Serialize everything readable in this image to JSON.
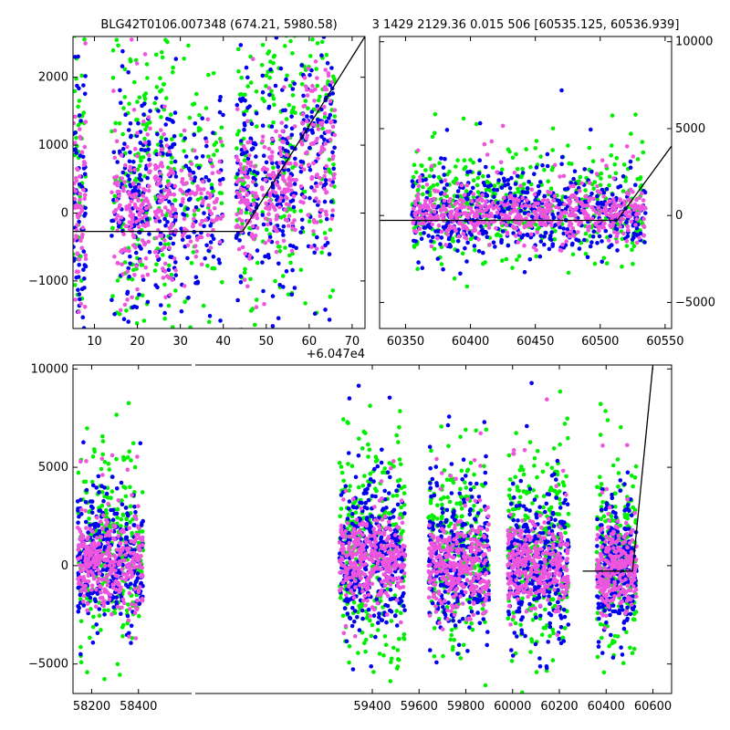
{
  "title_left": "BLG42T0106.007348 (674.21, 5980.58)",
  "title_right": "3 1429 2129.36 0.015 506 [60535.125, 60536.939]",
  "colors": {
    "green": "#00ee00",
    "blue": "#0000ee",
    "pink": "#ee55dd",
    "model": "#000000"
  },
  "chart_data": [
    {
      "id": "top-left",
      "type": "scatter",
      "xlim": [
        5,
        73
      ],
      "ylim": [
        -1700,
        2600
      ],
      "xticks": [
        10,
        20,
        30,
        40,
        50,
        60,
        70
      ],
      "yticks": [
        -1000,
        0,
        1000,
        2000
      ],
      "ytick_side": "left",
      "x_offset_label": "+6.047e4",
      "model_line": [
        [
          5,
          -270
        ],
        [
          44.5,
          -270
        ],
        [
          73,
          2600
        ]
      ],
      "clusters": [
        {
          "x": [
            5,
            8
          ],
          "yc": 100,
          "ys": 800,
          "n": 60
        },
        {
          "x": [
            14,
            18
          ],
          "yc": -100,
          "ys": 800,
          "n": 50
        },
        {
          "x": [
            18,
            23
          ],
          "yc": 0,
          "ys": 700,
          "n": 90
        },
        {
          "x": [
            24,
            29
          ],
          "yc": 100,
          "ys": 700,
          "n": 90
        },
        {
          "x": [
            30,
            40
          ],
          "yc": 50,
          "ys": 500,
          "n": 80
        },
        {
          "x": [
            43,
            48
          ],
          "yc": 100,
          "ys": 700,
          "n": 80
        },
        {
          "x": [
            49,
            57
          ],
          "yc": 400,
          "ys": 700,
          "n": 110
        },
        {
          "x": [
            58,
            66
          ],
          "yc": 1000,
          "ys": 800,
          "n": 110
        }
      ]
    },
    {
      "id": "top-right",
      "type": "scatter",
      "xlim": [
        60330,
        60555
      ],
      "ylim": [
        -6500,
        10300
      ],
      "xticks": [
        60350,
        60400,
        60450,
        60500,
        60550
      ],
      "yticks": [
        -5000,
        0,
        5000,
        10000
      ],
      "ytick_side": "right",
      "model_line": [
        [
          60330,
          -280
        ],
        [
          60513,
          -280
        ],
        [
          60555,
          4000
        ]
      ],
      "clusters": [
        {
          "x": [
            60355,
            60535
          ],
          "yc": 0,
          "ys": 900,
          "n": 520
        }
      ]
    },
    {
      "id": "bottom",
      "type": "scatter",
      "xlim": [
        58120,
        60680
      ],
      "ylim": [
        -6500,
        10200
      ],
      "xticks": [
        58200,
        58400,
        59400,
        59600,
        59800,
        60000,
        60200,
        60400,
        60600
      ],
      "yticks": [
        -5000,
        0,
        5000,
        10000
      ],
      "ytick_side": "left",
      "model_line": [
        [
          60300,
          -280
        ],
        [
          60513,
          -280
        ],
        [
          60600,
          10200
        ]
      ],
      "clusters": [
        {
          "x": [
            58140,
            58420
          ],
          "yc": 200,
          "ys": 1400,
          "n": 300
        },
        {
          "x": [
            59260,
            59540
          ],
          "yc": 300,
          "ys": 1500,
          "n": 320
        },
        {
          "x": [
            59640,
            59900
          ],
          "yc": -100,
          "ys": 1400,
          "n": 300
        },
        {
          "x": [
            59980,
            60240
          ],
          "yc": -100,
          "ys": 1400,
          "n": 300
        },
        {
          "x": [
            60360,
            60530
          ],
          "yc": -200,
          "ys": 1300,
          "n": 240
        }
      ]
    }
  ]
}
